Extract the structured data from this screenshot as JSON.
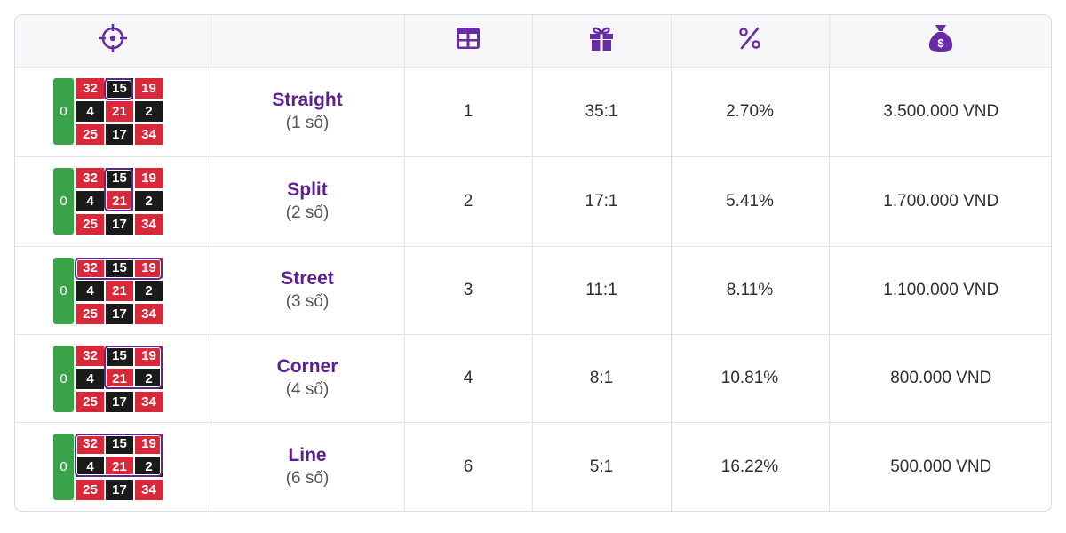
{
  "colors": {
    "accent": "#6b2aa6",
    "red": "#d9283a",
    "black": "#1a1a1a",
    "green": "#3aa34a"
  },
  "header": {
    "icons": [
      "crosshair-icon",
      "",
      "table-icon",
      "gift-icon",
      "percent-icon",
      "money-bag-icon"
    ]
  },
  "rows": [
    {
      "name": "Straight",
      "count": "(1 số)",
      "numbers": "1",
      "payout": "35:1",
      "percent": "2.70%",
      "amount": "3.500.000 VND",
      "highlight": "single"
    },
    {
      "name": "Split",
      "count": "(2 số)",
      "numbers": "2",
      "payout": "17:1",
      "percent": "5.41%",
      "amount": "1.700.000 VND",
      "highlight": "split"
    },
    {
      "name": "Street",
      "count": "(3 số)",
      "numbers": "3",
      "payout": "11:1",
      "percent": "8.11%",
      "amount": "1.100.000 VND",
      "highlight": "street"
    },
    {
      "name": "Corner",
      "count": "(4 số)",
      "numbers": "4",
      "payout": "8:1",
      "percent": "10.81%",
      "amount": "800.000 VND",
      "highlight": "corner"
    },
    {
      "name": "Line",
      "count": "(6 số)",
      "numbers": "6",
      "payout": "5:1",
      "percent": "16.22%",
      "amount": "500.000 VND",
      "highlight": "line"
    }
  ],
  "board": {
    "zero": "0",
    "cells": [
      [
        "32",
        "15",
        "19"
      ],
      [
        "4",
        "21",
        "2"
      ],
      [
        "25",
        "17",
        "34"
      ]
    ],
    "colors": [
      [
        "red",
        "black",
        "red"
      ],
      [
        "black",
        "red",
        "black"
      ],
      [
        "red",
        "black",
        "red"
      ]
    ]
  }
}
